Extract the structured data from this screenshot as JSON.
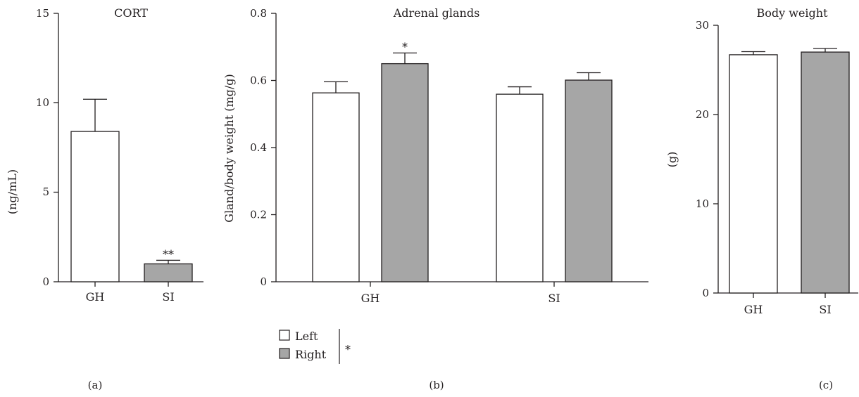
{
  "chart_data": [
    {
      "type": "bar",
      "title": "CORT",
      "ylabel": "(ng/mL)",
      "xlabel": "",
      "panel_label": "(a)",
      "ylim": [
        0,
        15
      ],
      "yticks": [
        "0",
        "5",
        "10",
        "15"
      ],
      "categories": [
        "GH",
        "SI"
      ],
      "values": [
        8.4,
        1.0
      ],
      "errors": [
        1.8,
        0.2
      ],
      "fills": [
        "#ffffff",
        "#a6a6a6"
      ],
      "annotations": [
        "",
        "**"
      ]
    },
    {
      "type": "bar",
      "title": "Adrenal glands",
      "ylabel": "Gland/body weight (mg/g)",
      "xlabel": "",
      "panel_label": "(b)",
      "ylim": [
        0,
        0.8
      ],
      "yticks": [
        "0",
        "0.2",
        "0.4",
        "0.6",
        "0.8"
      ],
      "categories": [
        "GH",
        "SI"
      ],
      "series": [
        {
          "name": "Left",
          "values": [
            0.563,
            0.559
          ],
          "errors": [
            0.033,
            0.022
          ],
          "fill": "#ffffff",
          "annotations": [
            "",
            ""
          ]
        },
        {
          "name": "Right",
          "values": [
            0.65,
            0.601
          ],
          "errors": [
            0.032,
            0.022
          ],
          "fill": "#a6a6a6",
          "annotations": [
            "*",
            ""
          ]
        }
      ],
      "legend": {
        "position": "bottom-left",
        "entries": [
          "Left",
          "Right"
        ],
        "mark": "*"
      }
    },
    {
      "type": "bar",
      "title": "Body weight",
      "ylabel": "(g)",
      "xlabel": "",
      "panel_label": "(c)",
      "ylim": [
        0,
        30
      ],
      "yticks": [
        "0",
        "10",
        "20",
        "30"
      ],
      "categories": [
        "GH",
        "SI"
      ],
      "values": [
        26.7,
        27.0
      ],
      "errors": [
        0.35,
        0.4
      ],
      "fills": [
        "#ffffff",
        "#a6a6a6"
      ],
      "annotations": [
        "",
        ""
      ]
    }
  ]
}
